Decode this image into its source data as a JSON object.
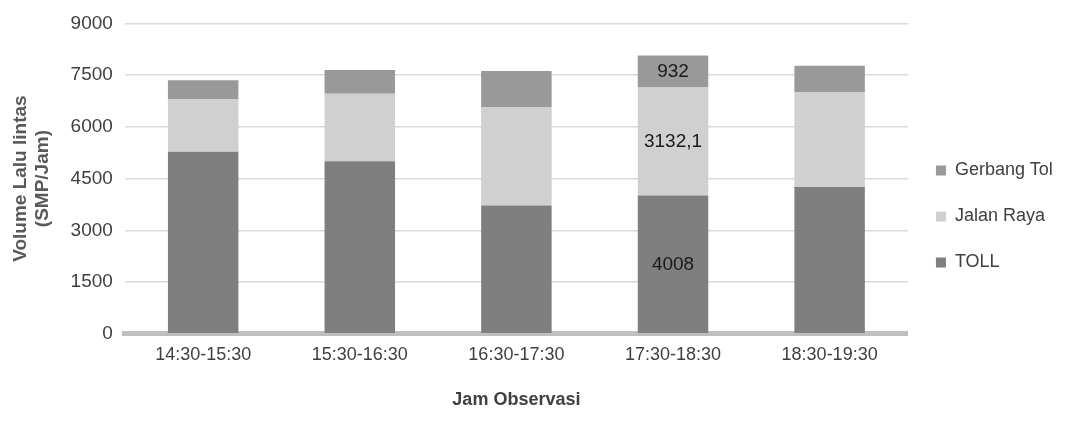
{
  "chart_data": {
    "type": "bar",
    "stacked": true,
    "xlabel": "Jam Observasi",
    "ylabel": "Volume Lalu lintas\n(SMP/Jam)",
    "categories": [
      "14:30-15:30",
      "15:30-16:30",
      "16:30-17:30",
      "17:30-18:30",
      "18:30-19:30"
    ],
    "series": [
      {
        "name": "TOLL",
        "color": "#7f7f7f",
        "values": [
          5280,
          5000,
          3720,
          4008,
          4260
        ],
        "value_labels": [
          null,
          null,
          null,
          "4008",
          null
        ]
      },
      {
        "name": "Jalan Raya",
        "color": "#d0d0d0",
        "values": [
          1530,
          1960,
          2840,
          3132.1,
          2750
        ],
        "value_labels": [
          null,
          null,
          null,
          "3132,1",
          null
        ]
      },
      {
        "name": "Gerbang Tol",
        "color": "#999999",
        "values": [
          540,
          690,
          1060,
          932,
          760
        ],
        "value_labels": [
          null,
          null,
          null,
          "932",
          null
        ]
      }
    ],
    "ylim": [
      0,
      9000
    ],
    "yticks": [
      0,
      1500,
      3000,
      4500,
      6000,
      7500,
      9000
    ],
    "grid": "y",
    "legend": "right"
  }
}
